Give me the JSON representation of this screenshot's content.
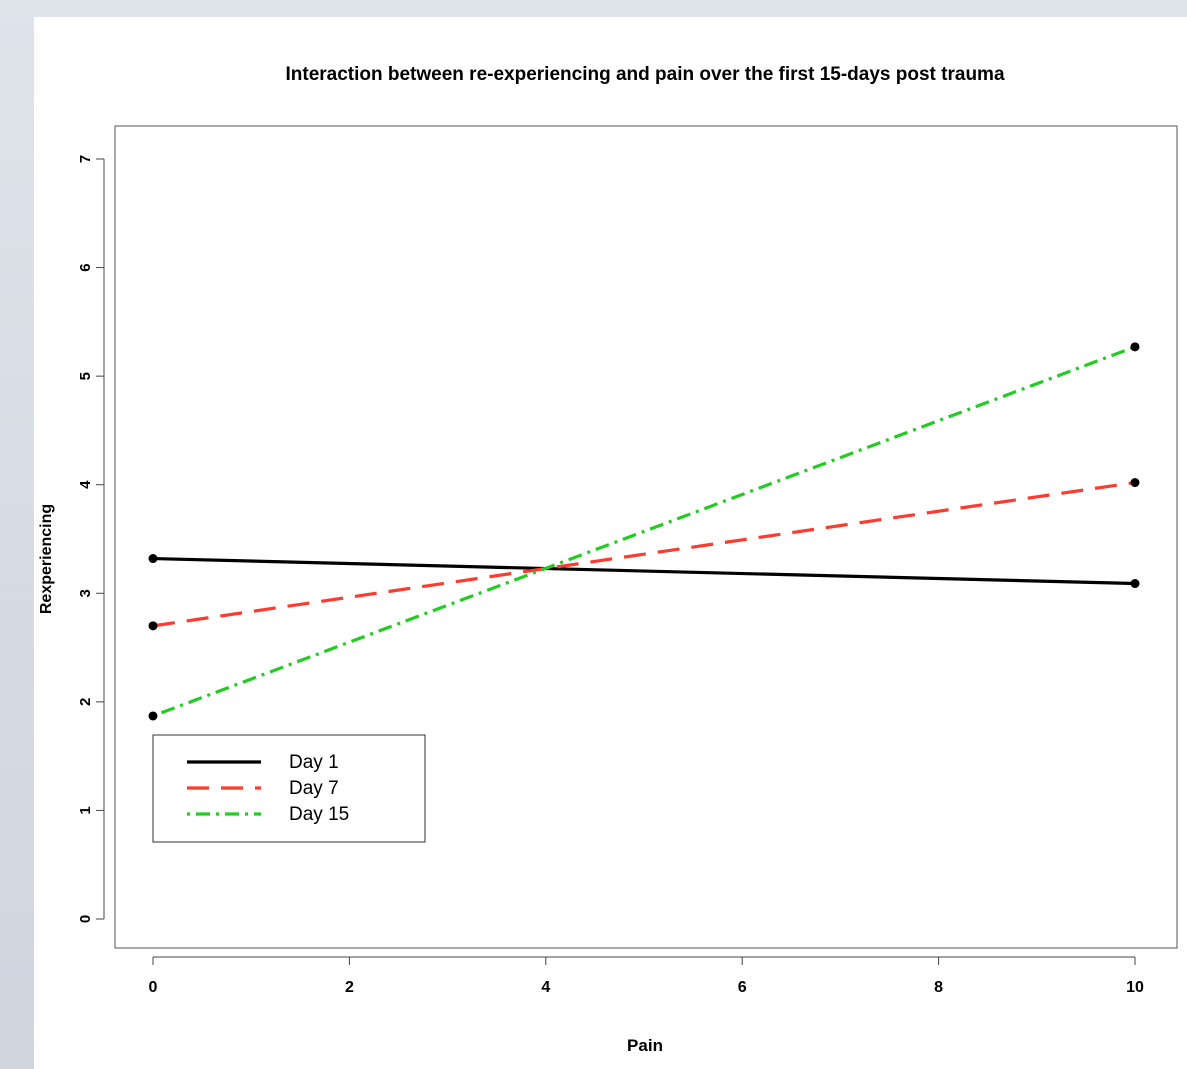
{
  "chart_data": {
    "type": "line",
    "title": "Interaction between re-experiencing and pain over the first 15-days post trauma",
    "xlabel": "Pain",
    "ylabel": "Rexperiencing",
    "xlim": [
      0,
      10
    ],
    "ylim": [
      0,
      7
    ],
    "xticks": [
      0,
      2,
      4,
      6,
      8,
      10
    ],
    "yticks": [
      0,
      1,
      2,
      3,
      4,
      5,
      6,
      7
    ],
    "grid": false,
    "legend_position": "bottom-left",
    "x": [
      0,
      10
    ],
    "series": [
      {
        "name": "Day 1",
        "values": [
          3.32,
          3.09
        ],
        "color": "#000000",
        "dash": "solid"
      },
      {
        "name": "Day 7",
        "values": [
          2.7,
          4.02
        ],
        "color": "#ff3b2f",
        "dash": "dashed"
      },
      {
        "name": "Day 15",
        "values": [
          1.87,
          5.27
        ],
        "color": "#22cc22",
        "dash": "dotdash"
      }
    ]
  }
}
